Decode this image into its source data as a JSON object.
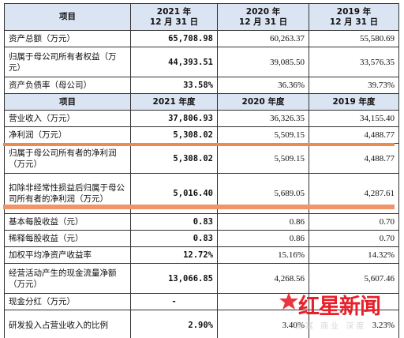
{
  "colors": {
    "header_bg": "#dbe4f2",
    "highlight": "#ef8a4f",
    "brand_red": "#e7202a"
  },
  "table": {
    "header1": {
      "item": "项目",
      "c2021": "2021 年\n12 月 31 日",
      "c2020": "2020 年\n12 月 31 日",
      "c2019": "2019 年\n12 月 31 日"
    },
    "balance_rows": [
      {
        "label": "资产总额（万元）",
        "v2021": "65,708.98",
        "v2020": "60,263.37",
        "v2019": "55,580.69"
      },
      {
        "label": "归属于母公司所有者权益（万元）",
        "v2021": "44,393.51",
        "v2020": "39,085.50",
        "v2019": "33,576.35"
      },
      {
        "label": "资产负债率（母公司）",
        "v2021": "33.58%",
        "v2020": "36.36%",
        "v2019": "39.73%"
      }
    ],
    "header2": {
      "item": "项目",
      "c2021": "2021 年度",
      "c2020": "2020 年度",
      "c2019": "2019 年度"
    },
    "income_rows": [
      {
        "label": "营业收入（万元）",
        "v2021": "37,806.93",
        "v2020": "36,326.35",
        "v2019": "34,155.40"
      },
      {
        "label": "净利润（万元）",
        "v2021": "5,308.02",
        "v2020": "5,509.15",
        "v2019": "4,488.77"
      },
      {
        "label": "归属于母公司所有者的净利润（万元）",
        "v2021": "5,308.02",
        "v2020": "5,509.15",
        "v2019": "4,488.77"
      },
      {
        "label": "扣除非经常性损益后归属于母公司所有者的净利润（万元）",
        "v2021": "5,016.40",
        "v2020": "5,689.05",
        "v2019": "4,287.61"
      },
      {
        "label": "基本每股收益（元）",
        "v2021": "0.83",
        "v2020": "0.86",
        "v2019": "0.70"
      },
      {
        "label": "稀释每股收益（元）",
        "v2021": "0.83",
        "v2020": "0.86",
        "v2019": "0.70"
      },
      {
        "label": "加权平均净资产收益率",
        "v2021": "12.72%",
        "v2020": "15.16%",
        "v2019": "14.32%"
      },
      {
        "label": "经营活动产生的现金流量净额（万元）",
        "v2021": "13,066.85",
        "v2020": "4,268.56",
        "v2019": "5,607.46"
      },
      {
        "label": "现金分红（万元）",
        "v2021": "-",
        "v2020": "",
        "v2019": ""
      },
      {
        "label": "研发投入占营业收入的比例",
        "v2021": "2.90%",
        "v2020": "3.40%",
        "v2019": "3.23%"
      }
    ]
  },
  "watermark": {
    "brand": "红星新闻",
    "sub": "财富 商业 深度",
    "icon": "red-star-logo-icon"
  }
}
